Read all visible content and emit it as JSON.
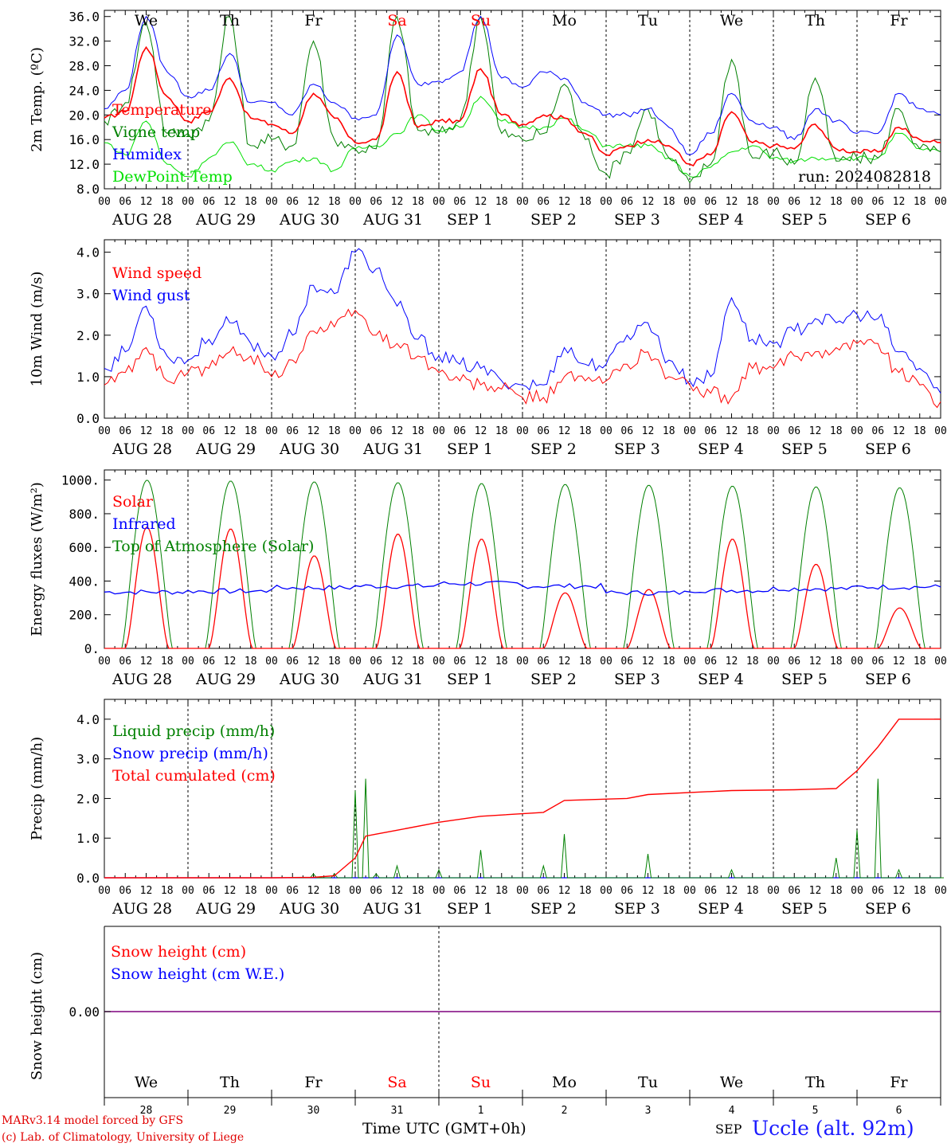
{
  "chart_data": [
    {
      "type": "line",
      "ylabel": "2m Temp. (ºC)",
      "ylim": [
        8,
        37
      ],
      "yticks": [
        "36.0",
        "32.0",
        "28.0",
        "24.0",
        "20.0",
        "16.0",
        "12.0",
        "8.0"
      ],
      "yticks_values": [
        36,
        32,
        28,
        24,
        20,
        16,
        12,
        8
      ],
      "annotation": "run: 2024082818",
      "x": [
        "2024-08-28 00:00",
        "2024-08-28 06:00",
        "2024-08-28 12:00",
        "2024-08-28 18:00",
        "2024-08-29 00:00",
        "2024-08-29 06:00",
        "2024-08-29 12:00",
        "2024-08-29 18:00",
        "2024-08-30 00:00",
        "2024-08-30 06:00",
        "2024-08-30 12:00",
        "2024-08-30 18:00",
        "2024-08-31 00:00",
        "2024-08-31 06:00",
        "2024-08-31 12:00",
        "2024-08-31 18:00",
        "2024-09-01 00:00",
        "2024-09-01 06:00",
        "2024-09-01 12:00",
        "2024-09-01 18:00",
        "2024-09-02 00:00",
        "2024-09-02 06:00",
        "2024-09-02 12:00",
        "2024-09-02 18:00",
        "2024-09-03 00:00",
        "2024-09-03 06:00",
        "2024-09-03 12:00",
        "2024-09-03 18:00",
        "2024-09-04 00:00",
        "2024-09-04 06:00",
        "2024-09-04 12:00",
        "2024-09-04 18:00",
        "2024-09-05 00:00",
        "2024-09-05 06:00",
        "2024-09-05 12:00",
        "2024-09-05 18:00",
        "2024-09-06 00:00",
        "2024-09-06 06:00",
        "2024-09-06 12:00",
        "2024-09-06 18:00",
        "2024-09-07 00:00"
      ],
      "series": [
        {
          "name": "Temperature",
          "color": "#ff0000",
          "values": [
            19.5,
            20.5,
            31,
            23,
            19,
            20.5,
            26,
            19.5,
            18.5,
            17,
            23.5,
            19.5,
            15.5,
            16,
            27,
            18,
            19,
            19,
            27.5,
            20,
            18.5,
            20,
            19.5,
            17,
            13.5,
            15,
            16,
            15,
            12,
            13.5,
            20.5,
            15.5,
            15,
            14.5,
            18.5,
            14.5,
            14,
            14,
            18,
            16,
            15.5
          ]
        },
        {
          "name": "Vigne temp",
          "color": "#008000",
          "values": [
            19,
            22,
            35,
            17,
            17,
            19,
            36,
            15,
            16,
            15,
            32,
            16,
            14.5,
            14.5,
            36,
            17.5,
            17,
            19,
            36,
            17,
            16,
            17,
            25,
            16,
            10.5,
            14,
            21,
            13,
            9,
            12,
            29,
            13,
            14,
            12,
            26,
            12.5,
            13,
            13,
            21,
            14.5,
            14
          ]
        },
        {
          "name": "Humidex",
          "color": "#0000ff",
          "values": [
            21,
            24,
            36,
            27,
            23,
            24,
            30,
            22,
            22,
            20,
            25,
            22,
            19.5,
            20,
            33,
            25,
            25.5,
            27,
            36,
            26,
            24.5,
            27,
            26,
            22,
            20,
            20,
            21,
            18,
            13.5,
            17,
            23.5,
            19,
            18,
            16,
            21,
            19,
            17,
            17,
            23.5,
            21,
            20
          ]
        },
        {
          "name": "DewPoint Temp",
          "color": "#00e000",
          "values": [
            15.5,
            13.5,
            19,
            12,
            10,
            13,
            15.5,
            12,
            11,
            12.5,
            13,
            11,
            14.5,
            15,
            17,
            20,
            17.5,
            18,
            23,
            19,
            18,
            18,
            19.5,
            17.5,
            15,
            15,
            15,
            13,
            10,
            11.5,
            14,
            15,
            13,
            12.5,
            13,
            13,
            13,
            13,
            17,
            14.5,
            14
          ]
        }
      ]
    },
    {
      "type": "line",
      "ylabel": "10m Wind (m/s)",
      "ylim": [
        0,
        4.3
      ],
      "yticks": [
        "4.0",
        "3.0",
        "2.0",
        "1.0",
        "0.0"
      ],
      "yticks_values": [
        4,
        3,
        2,
        1,
        0
      ],
      "x": [
        "2024-08-28 00:00",
        "2024-08-28 06:00",
        "2024-08-28 12:00",
        "2024-08-28 18:00",
        "2024-08-29 00:00",
        "2024-08-29 06:00",
        "2024-08-29 12:00",
        "2024-08-29 18:00",
        "2024-08-30 00:00",
        "2024-08-30 06:00",
        "2024-08-30 12:00",
        "2024-08-30 18:00",
        "2024-08-31 00:00",
        "2024-08-31 06:00",
        "2024-08-31 12:00",
        "2024-08-31 18:00",
        "2024-09-01 00:00",
        "2024-09-01 06:00",
        "2024-09-01 12:00",
        "2024-09-01 18:00",
        "2024-09-02 00:00",
        "2024-09-02 06:00",
        "2024-09-02 12:00",
        "2024-09-02 18:00",
        "2024-09-03 00:00",
        "2024-09-03 06:00",
        "2024-09-03 12:00",
        "2024-09-03 18:00",
        "2024-09-04 00:00",
        "2024-09-04 06:00",
        "2024-09-04 12:00",
        "2024-09-04 18:00",
        "2024-09-05 00:00",
        "2024-09-05 06:00",
        "2024-09-05 12:00",
        "2024-09-05 18:00",
        "2024-09-06 00:00",
        "2024-09-06 06:00",
        "2024-09-06 12:00",
        "2024-09-06 18:00",
        "2024-09-07 00:00"
      ],
      "series": [
        {
          "name": "Wind speed",
          "color": "#ff0000",
          "values": [
            0.8,
            1.1,
            1.7,
            0.9,
            1.1,
            1.2,
            1.6,
            1.5,
            1.0,
            1.4,
            2.1,
            2.2,
            2.6,
            2.0,
            1.8,
            1.5,
            1.1,
            0.9,
            0.8,
            0.7,
            0.5,
            0.5,
            1.0,
            0.9,
            0.9,
            1.3,
            1.6,
            1.0,
            0.8,
            0.6,
            0.5,
            1.2,
            1.2,
            1.5,
            1.6,
            1.7,
            1.8,
            1.8,
            1.1,
            0.8,
            0.4
          ]
        },
        {
          "name": "Wind gust",
          "color": "#0000ff",
          "values": [
            1.2,
            1.6,
            2.7,
            1.5,
            1.4,
            1.9,
            2.3,
            1.8,
            1.5,
            2.0,
            3.2,
            3.0,
            4.0,
            3.6,
            2.7,
            1.9,
            1.5,
            1.3,
            1.2,
            0.9,
            0.8,
            0.8,
            1.7,
            1.3,
            1.3,
            2.0,
            2.3,
            1.4,
            0.9,
            1.0,
            2.9,
            1.9,
            1.8,
            2.1,
            2.4,
            2.3,
            2.5,
            2.4,
            1.6,
            1.2,
            0.6
          ]
        }
      ]
    },
    {
      "type": "line",
      "ylabel": "Energy fluxes (W/m²)",
      "ylim": [
        0,
        1060
      ],
      "yticks": [
        "1000.",
        "800.",
        "600.",
        "400.",
        "200.",
        "0."
      ],
      "yticks_values": [
        1000,
        800,
        600,
        400,
        200,
        0
      ],
      "peak_day_index": [
        0,
        1,
        2,
        3,
        4,
        5,
        6,
        7,
        8,
        9
      ],
      "series": [
        {
          "name": "Solar",
          "color": "#ff0000",
          "daily_peak": [
            720,
            710,
            550,
            680,
            650,
            330,
            350,
            650,
            500,
            240
          ]
        },
        {
          "name": "Infrared",
          "color": "#0000ff",
          "daily_mean": [
            335,
            340,
            360,
            370,
            385,
            370,
            330,
            345,
            355,
            365
          ]
        },
        {
          "name": "Top of Atmosphere (Solar)",
          "color": "#008000",
          "daily_peak": [
            1000,
            995,
            990,
            985,
            980,
            975,
            970,
            965,
            960,
            955
          ]
        }
      ]
    },
    {
      "type": "line",
      "ylabel": "Precip (mm/h)",
      "ylim": [
        0,
        4.5
      ],
      "yticks": [
        "4.0",
        "3.0",
        "2.0",
        "1.0",
        "0.0"
      ],
      "yticks_values": [
        4,
        3,
        2,
        1,
        0
      ],
      "x": [
        "2024-08-28 00:00",
        "2024-08-29 00:00",
        "2024-08-30 00:00",
        "2024-08-30 12:00",
        "2024-08-30 18:00",
        "2024-08-31 00:00",
        "2024-08-31 03:00",
        "2024-08-31 06:00",
        "2024-08-31 12:00",
        "2024-09-01 00:00",
        "2024-09-01 12:00",
        "2024-09-02 06:00",
        "2024-09-02 12:00",
        "2024-09-03 06:00",
        "2024-09-03 12:00",
        "2024-09-04 12:00",
        "2024-09-05 06:00",
        "2024-09-05 18:00",
        "2024-09-06 00:00",
        "2024-09-06 06:00",
        "2024-09-06 12:00",
        "2024-09-07 00:00"
      ],
      "series": [
        {
          "name": "Liquid precip (mm/h)",
          "color": "#008000",
          "values": [
            0,
            0,
            0,
            0.1,
            0.1,
            2.2,
            2.5,
            0.1,
            0.3,
            0.2,
            0.7,
            0.3,
            1.1,
            0,
            0.6,
            0.2,
            0,
            0.5,
            1.2,
            2.5,
            0.2,
            0
          ]
        },
        {
          "name": "Snow precip (mm/h)",
          "color": "#0000ff",
          "values": [
            0,
            0,
            0,
            0,
            0,
            0,
            0,
            0,
            0,
            0,
            0,
            0,
            0,
            0,
            0,
            0,
            0,
            0,
            0,
            0,
            0,
            0
          ]
        },
        {
          "name": "Total cumulated (cm)",
          "color": "#ff0000",
          "values": [
            0,
            0,
            0,
            0.01,
            0.05,
            0.5,
            1.05,
            1.1,
            1.2,
            1.4,
            1.55,
            1.65,
            1.95,
            2.0,
            2.1,
            2.2,
            2.22,
            2.25,
            2.7,
            3.3,
            4.0,
            4.0
          ]
        }
      ]
    },
    {
      "type": "line",
      "ylabel": "Snow height (cm)",
      "yticks": [
        "0.00"
      ],
      "series": [
        {
          "name": "Snow height (cm)",
          "color": "#ff0000",
          "values": [
            0,
            0
          ]
        },
        {
          "name": "Snow height (cm W.E.)",
          "color": "#0000ff",
          "values": [
            0,
            0
          ]
        }
      ]
    }
  ],
  "days": [
    "We",
    "Th",
    "Fr",
    "Sa",
    "Su",
    "Mo",
    "Tu",
    "We",
    "Th",
    "Fr"
  ],
  "weekend_days": [
    3,
    4
  ],
  "dates": [
    "AUG 28",
    "AUG 29",
    "AUG 30",
    "AUG 31",
    "SEP  1",
    "SEP  2",
    "SEP  3",
    "SEP  4",
    "SEP  5",
    "SEP  6"
  ],
  "hour_ticks": [
    "00",
    "06",
    "12",
    "18"
  ],
  "hour_end": "00",
  "day_numbers": [
    "28",
    "29",
    "30",
    "31",
    "1",
    "2",
    "3",
    "4",
    "5",
    "6"
  ],
  "colors": {
    "weekday": "#000000",
    "weekend": "#ff0000",
    "snow_line": "#7f007f"
  },
  "footer": {
    "model": "MARv3.14 model forced by GFS",
    "credit": "(c) Lab. of Climatology, University of Liege",
    "axis_title": "Time UTC (GMT+0h)",
    "month": "SEP",
    "site": "Uccle (alt. 92m)"
  }
}
